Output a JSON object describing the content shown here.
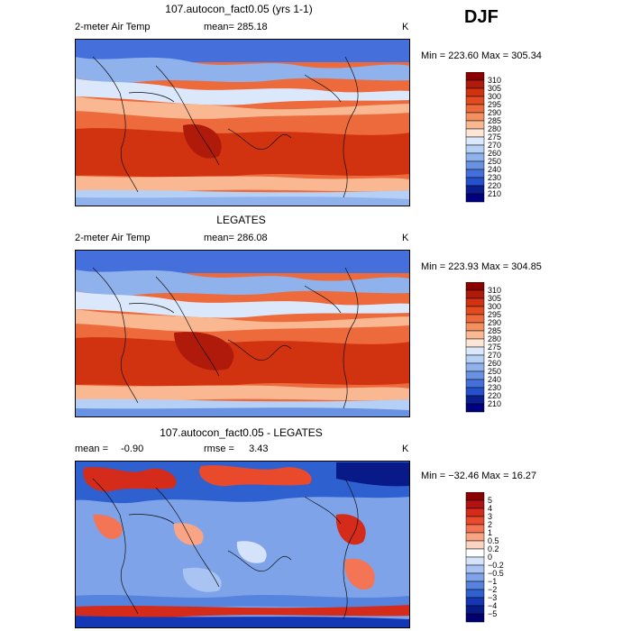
{
  "season": "DJF",
  "panels": [
    {
      "title": "107.autocon_fact0.05 (yrs 1-1)",
      "variable": "2-meter Air Temp",
      "mean_label": "mean=",
      "mean_value": "285.18",
      "rmse_label": "",
      "rmse_value": "",
      "units": "K",
      "minmax": "Min = 223.60 Max = 305.34",
      "colorbar_levels": [
        "310",
        "305",
        "300",
        "295",
        "290",
        "285",
        "280",
        "275",
        "270",
        "260",
        "250",
        "240",
        "230",
        "220",
        "210"
      ]
    },
    {
      "title": "LEGATES",
      "variable": "2-meter Air Temp",
      "mean_label": "mean=",
      "mean_value": "286.08",
      "rmse_label": "",
      "rmse_value": "",
      "units": "K",
      "minmax": "Min = 223.93 Max = 304.85",
      "colorbar_levels": [
        "310",
        "305",
        "300",
        "295",
        "290",
        "285",
        "280",
        "275",
        "270",
        "260",
        "250",
        "240",
        "230",
        "220",
        "210"
      ]
    },
    {
      "title": "107.autocon_fact0.05 - LEGATES",
      "variable": "",
      "mean_label": "mean =",
      "mean_value": "-0.90",
      "rmse_label": "rmse =",
      "rmse_value": "3.43",
      "units": "K",
      "minmax": "Min = −32.46 Max = 16.27",
      "colorbar_levels": [
        "5",
        "4",
        "3",
        "2",
        "1",
        "0.5",
        "0.2",
        "0",
        "−0.2",
        "−0.5",
        "−1",
        "−2",
        "−3",
        "−4",
        "−5"
      ]
    }
  ],
  "colors": {
    "temp_scale": [
      "#8b0000",
      "#b01a0a",
      "#d1320f",
      "#e24a1f",
      "#ec6a3b",
      "#f4905f",
      "#f9b892",
      "#fde6d5",
      "#dbe8fb",
      "#b6cff4",
      "#8fb1ec",
      "#6a92e3",
      "#4570db",
      "#2552cc",
      "#0a1e8f",
      "#000080"
    ],
    "diff_scale": [
      "#8b0000",
      "#b31212",
      "#d42b1a",
      "#ea4a2c",
      "#f37555",
      "#f9a585",
      "#fcd3c0",
      "#ffffff",
      "#d4e2fa",
      "#a9c3f2",
      "#7ea3e8",
      "#5583de",
      "#2f60d0",
      "#1437b5",
      "#081a88",
      "#000070"
    ]
  }
}
